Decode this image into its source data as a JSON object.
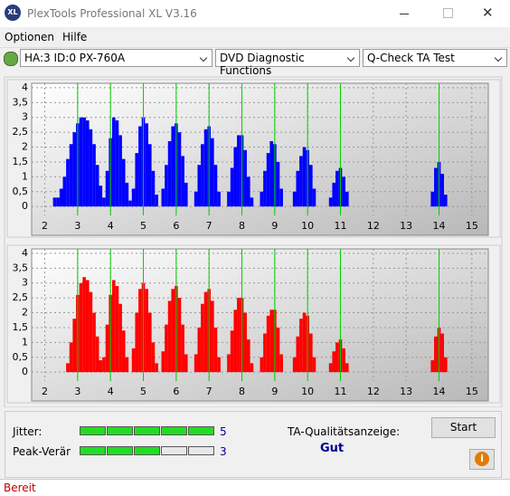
{
  "window": {
    "icon_text": "XL",
    "title": "PlexTools Professional XL V3.16"
  },
  "menu": [
    "Optionen",
    "Hilfe"
  ],
  "toolbar": [
    "HA:3 ID:0  PX-760A",
    "DVD Diagnostic Functions",
    "Q-Check TA Test"
  ],
  "chart_data": [
    {
      "type": "bar",
      "color": "#0000ff",
      "reference_color": "#00d000",
      "reference_lines": [
        3,
        4,
        5,
        6,
        7,
        8,
        9,
        10,
        11,
        14
      ],
      "xlim": [
        1.6,
        15.5
      ],
      "ylim": [
        -0.3,
        4.15
      ],
      "xticks": [
        2,
        3,
        4,
        5,
        6,
        7,
        8,
        9,
        10,
        11,
        12,
        13,
        14,
        15
      ],
      "yticks": [
        0,
        {
          "value": 0.5,
          "label": "0,5"
        },
        1,
        {
          "value": 1.5,
          "label": "1,5"
        },
        2,
        {
          "value": 2.5,
          "label": "2,5"
        },
        3,
        {
          "value": 3.5,
          "label": "3,5"
        },
        4
      ],
      "x": [
        2.3,
        2.4,
        2.5,
        2.6,
        2.7,
        2.8,
        2.9,
        3.0,
        3.1,
        3.2,
        3.3,
        3.4,
        3.5,
        3.6,
        3.7,
        3.8,
        3.9,
        4.0,
        4.1,
        4.2,
        4.3,
        4.4,
        4.5,
        4.6,
        4.7,
        4.8,
        4.9,
        5.0,
        5.1,
        5.2,
        5.3,
        5.4,
        5.6,
        5.7,
        5.8,
        5.9,
        6.0,
        6.1,
        6.2,
        6.3,
        6.6,
        6.7,
        6.8,
        6.9,
        7.0,
        7.1,
        7.2,
        7.3,
        7.6,
        7.7,
        7.8,
        7.9,
        8.0,
        8.1,
        8.2,
        8.3,
        8.6,
        8.7,
        8.8,
        8.9,
        9.0,
        9.1,
        9.2,
        9.6,
        9.7,
        9.8,
        9.9,
        10.0,
        10.1,
        10.2,
        10.7,
        10.8,
        10.9,
        11.0,
        11.1,
        11.2,
        13.8,
        13.9,
        14.0,
        14.1,
        14.2
      ],
      "values": [
        0.3,
        0.3,
        0.6,
        1.0,
        1.6,
        2.1,
        2.5,
        2.8,
        3.0,
        3.0,
        2.9,
        2.6,
        2.1,
        1.4,
        0.7,
        0.3,
        1.2,
        2.3,
        3.0,
        2.9,
        2.4,
        1.6,
        0.8,
        0.2,
        0.6,
        1.8,
        2.7,
        3.0,
        2.8,
        2.1,
        1.2,
        0.4,
        0.6,
        1.4,
        2.2,
        2.7,
        2.8,
        2.5,
        1.7,
        0.8,
        0.5,
        1.4,
        2.1,
        2.6,
        2.7,
        2.3,
        1.4,
        0.5,
        0.5,
        1.3,
        2.0,
        2.4,
        2.4,
        1.9,
        1.0,
        0.3,
        0.5,
        1.2,
        1.8,
        2.2,
        2.1,
        1.5,
        0.6,
        0.5,
        1.2,
        1.7,
        2.0,
        1.9,
        1.4,
        0.6,
        0.3,
        0.8,
        1.2,
        1.3,
        1.0,
        0.5,
        0.5,
        1.3,
        1.5,
        1.1,
        0.4
      ]
    },
    {
      "type": "bar",
      "color": "#ff0000",
      "reference_color": "#00d000",
      "reference_lines": [
        3,
        4,
        5,
        6,
        7,
        8,
        9,
        10,
        11,
        14
      ],
      "xlim": [
        1.6,
        15.5
      ],
      "ylim": [
        -0.3,
        4.15
      ],
      "xticks": [
        2,
        3,
        4,
        5,
        6,
        7,
        8,
        9,
        10,
        11,
        12,
        13,
        14,
        15
      ],
      "yticks": [
        0,
        {
          "value": 0.5,
          "label": "0,5"
        },
        1,
        {
          "value": 1.5,
          "label": "1,5"
        },
        2,
        {
          "value": 2.5,
          "label": "2,5"
        },
        3,
        {
          "value": 3.5,
          "label": "3,5"
        },
        4
      ],
      "x": [
        2.7,
        2.8,
        2.9,
        3.0,
        3.1,
        3.2,
        3.3,
        3.4,
        3.5,
        3.6,
        3.7,
        3.8,
        3.9,
        4.0,
        4.1,
        4.2,
        4.3,
        4.4,
        4.5,
        4.7,
        4.8,
        4.9,
        5.0,
        5.1,
        5.2,
        5.3,
        5.4,
        5.6,
        5.7,
        5.8,
        5.9,
        6.0,
        6.1,
        6.2,
        6.3,
        6.6,
        6.7,
        6.8,
        6.9,
        7.0,
        7.1,
        7.2,
        7.3,
        7.6,
        7.7,
        7.8,
        7.9,
        8.0,
        8.1,
        8.2,
        8.3,
        8.6,
        8.7,
        8.8,
        8.9,
        9.0,
        9.1,
        9.2,
        9.6,
        9.7,
        9.8,
        9.9,
        10.0,
        10.1,
        10.2,
        10.7,
        10.8,
        10.9,
        11.0,
        11.1,
        11.2,
        13.8,
        13.9,
        14.0,
        14.1,
        14.2
      ],
      "values": [
        0.3,
        1.0,
        1.8,
        2.6,
        3.0,
        3.2,
        3.1,
        2.7,
        2.0,
        1.2,
        0.4,
        0.5,
        1.6,
        2.6,
        3.1,
        2.9,
        2.3,
        1.4,
        0.5,
        0.8,
        2.0,
        2.8,
        3.0,
        2.8,
        2.0,
        1.0,
        0.3,
        0.7,
        1.6,
        2.4,
        2.8,
        2.9,
        2.5,
        1.6,
        0.6,
        0.6,
        1.5,
        2.3,
        2.7,
        2.8,
        2.4,
        1.5,
        0.5,
        0.6,
        1.4,
        2.1,
        2.5,
        2.5,
        2.0,
        1.1,
        0.3,
        0.5,
        1.3,
        1.9,
        2.1,
        2.1,
        1.5,
        0.6,
        0.5,
        1.2,
        1.8,
        2.0,
        1.9,
        1.3,
        0.5,
        0.3,
        0.7,
        1.0,
        1.1,
        0.8,
        0.3,
        0.4,
        1.2,
        1.5,
        1.3,
        0.5
      ]
    }
  ],
  "results": {
    "jitter": {
      "label": "Jitter:",
      "value": 5
    },
    "peak": {
      "label": "Peak-Veränd",
      "value": 3
    },
    "segments": 5,
    "quality_label": "TA-Qualitätsanzeige:",
    "quality": "Gut",
    "start": "Start",
    "info": "i"
  },
  "status": "Bereit"
}
